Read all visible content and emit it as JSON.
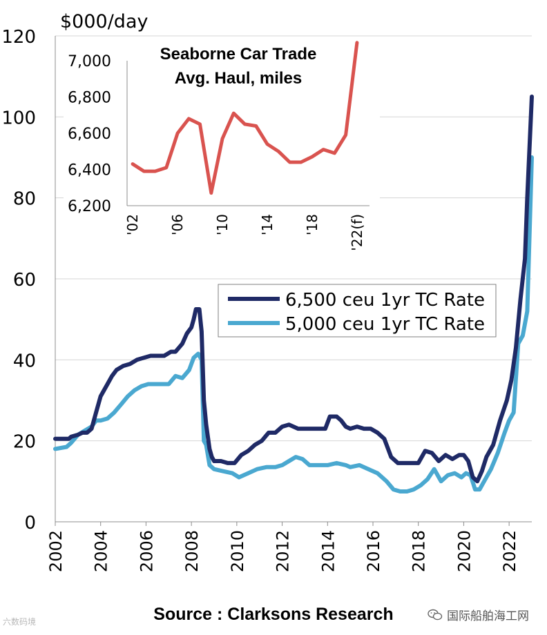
{
  "chart_data": [
    {
      "type": "line",
      "title": "",
      "unit_label": "$000/day",
      "xlabel": "",
      "ylabel": "$000/day",
      "xlim": [
        2002,
        2023.0
      ],
      "ylim": [
        0,
        120
      ],
      "y_ticks": [
        0,
        20,
        40,
        60,
        80,
        100,
        120
      ],
      "y_tick_labels": [
        "0",
        "20",
        "40",
        "60",
        "80",
        "100",
        "120"
      ],
      "x_ticks": [
        2002,
        2004,
        2006,
        2008,
        2010,
        2012,
        2014,
        2016,
        2018,
        2020,
        2022
      ],
      "x_tick_labels": [
        "2002",
        "2004",
        "2006",
        "2008",
        "2010",
        "2012",
        "2014",
        "2016",
        "2018",
        "2020",
        "2022"
      ],
      "grid": true,
      "legend": "center-right",
      "series": [
        {
          "name": "6,500 ceu 1yr TC Rate",
          "color": "#1f2a66",
          "x": [
            2002.0,
            2002.6,
            2002.7,
            2003.0,
            2003.2,
            2003.4,
            2003.6,
            2003.8,
            2004.0,
            2004.3,
            2004.5,
            2004.7,
            2005.0,
            2005.3,
            2005.6,
            2005.9,
            2006.2,
            2006.5,
            2006.8,
            2007.1,
            2007.3,
            2007.6,
            2007.8,
            2008.0,
            2008.1,
            2008.2,
            2008.35,
            2008.45,
            2008.55,
            2008.65,
            2008.8,
            2008.9,
            2009.0,
            2009.3,
            2009.6,
            2009.9,
            2010.2,
            2010.5,
            2010.8,
            2011.1,
            2011.4,
            2011.7,
            2012.0,
            2012.3,
            2012.7,
            2013.0,
            2013.3,
            2013.6,
            2013.9,
            2014.1,
            2014.4,
            2014.6,
            2014.8,
            2015.0,
            2015.3,
            2015.6,
            2015.9,
            2016.2,
            2016.5,
            2016.8,
            2017.1,
            2017.4,
            2017.7,
            2018.0,
            2018.3,
            2018.6,
            2018.9,
            2019.2,
            2019.5,
            2019.8,
            2020.0,
            2020.2,
            2020.4,
            2020.6,
            2020.8,
            2021.0,
            2021.3,
            2021.6,
            2021.9,
            2022.1,
            2022.3,
            2022.5,
            2022.7,
            2022.8,
            2023.0
          ],
          "values": [
            20.5,
            20.5,
            21.0,
            21.5,
            22.0,
            22.0,
            23.0,
            27.0,
            31.0,
            34.0,
            36.0,
            37.5,
            38.5,
            39.0,
            40.0,
            40.5,
            41.0,
            41.0,
            41.0,
            42.0,
            42.0,
            44.0,
            46.5,
            48.0,
            50.0,
            52.5,
            52.5,
            47.0,
            30.0,
            24.0,
            18.0,
            16.0,
            15.0,
            15.0,
            14.5,
            14.5,
            16.5,
            17.5,
            19.0,
            20.0,
            22.0,
            22.0,
            23.5,
            24.0,
            23.0,
            23.0,
            23.0,
            23.0,
            23.0,
            26.0,
            26.0,
            25.0,
            23.5,
            23.0,
            23.5,
            23.0,
            23.0,
            22.0,
            20.5,
            16.0,
            14.5,
            14.5,
            14.5,
            14.5,
            17.5,
            17.0,
            15.0,
            16.5,
            15.5,
            16.5,
            16.5,
            15.0,
            11.0,
            10.0,
            12.5,
            16.0,
            19.0,
            25.0,
            30.0,
            35.0,
            43.0,
            55.0,
            65.0,
            80.0,
            105.0
          ]
        },
        {
          "name": "5,000 ceu 1yr TC Rate",
          "color": "#4aa8d0",
          "x": [
            2002.0,
            2002.5,
            2002.7,
            2003.0,
            2003.3,
            2003.6,
            2003.8,
            2004.0,
            2004.3,
            2004.6,
            2004.9,
            2005.2,
            2005.5,
            2005.8,
            2006.1,
            2006.4,
            2006.7,
            2007.0,
            2007.3,
            2007.6,
            2007.9,
            2008.1,
            2008.3,
            2008.45,
            2008.55,
            2008.65,
            2008.8,
            2009.0,
            2009.4,
            2009.8,
            2010.1,
            2010.5,
            2010.9,
            2011.3,
            2011.7,
            2012.0,
            2012.3,
            2012.6,
            2012.9,
            2013.2,
            2013.6,
            2014.0,
            2014.4,
            2014.8,
            2015.0,
            2015.4,
            2015.8,
            2016.2,
            2016.6,
            2016.9,
            2017.2,
            2017.5,
            2017.8,
            2018.1,
            2018.4,
            2018.7,
            2019.0,
            2019.3,
            2019.6,
            2019.9,
            2020.1,
            2020.3,
            2020.5,
            2020.7,
            2020.9,
            2021.2,
            2021.5,
            2021.8,
            2022.0,
            2022.2,
            2022.4,
            2022.6,
            2022.8,
            2023.0
          ],
          "values": [
            18.0,
            18.5,
            19.5,
            21.5,
            22.5,
            23.5,
            25.0,
            25.0,
            25.5,
            27.0,
            29.0,
            31.0,
            32.5,
            33.5,
            34.0,
            34.0,
            34.0,
            34.0,
            36.0,
            35.5,
            37.5,
            40.5,
            41.5,
            40.0,
            20.0,
            19.0,
            14.0,
            13.0,
            12.5,
            12.0,
            11.0,
            12.0,
            13.0,
            13.5,
            13.5,
            14.0,
            15.0,
            16.0,
            15.5,
            14.0,
            14.0,
            14.0,
            14.5,
            14.0,
            13.5,
            14.0,
            13.0,
            12.0,
            10.0,
            8.0,
            7.5,
            7.5,
            8.0,
            9.0,
            10.5,
            13.0,
            10.0,
            11.5,
            12.0,
            11.0,
            12.0,
            11.5,
            8.0,
            8.0,
            10.0,
            13.0,
            17.0,
            22.0,
            25.0,
            27.0,
            44.0,
            46.0,
            52.0,
            90.0
          ]
        }
      ]
    },
    {
      "type": "line",
      "title": "Seaborne Car Trade Avg. Haul, miles",
      "title_lines": [
        "Seaborne Car Trade",
        "Avg. Haul, miles"
      ],
      "xlabel": "",
      "ylabel": "",
      "xlim": [
        2001.5,
        2022.5
      ],
      "ylim": [
        6200,
        7000
      ],
      "y_ticks": [
        6200,
        6400,
        6600,
        6800,
        7000
      ],
      "y_tick_labels": [
        "6,200",
        "6,400",
        "6,600",
        "6,800",
        "7,000"
      ],
      "x_ticks": [
        2002,
        2006,
        2010,
        2014,
        2018,
        2022
      ],
      "x_tick_labels": [
        "'02",
        "'06",
        "'10",
        "'14",
        "'18",
        "'22(f)"
      ],
      "grid": false,
      "legend": "none",
      "series": [
        {
          "name": "Avg. Haul",
          "color": "#d9534f",
          "x": [
            2002,
            2003,
            2004,
            2005,
            2006,
            2007,
            2008,
            2009,
            2010,
            2011,
            2012,
            2013,
            2014,
            2015,
            2016,
            2017,
            2018,
            2019,
            2020,
            2021,
            2022
          ],
          "values": [
            6430,
            6390,
            6390,
            6410,
            6600,
            6680,
            6650,
            6270,
            6570,
            6710,
            6650,
            6640,
            6540,
            6500,
            6440,
            6440,
            6470,
            6510,
            6490,
            6590,
            7100
          ]
        }
      ]
    }
  ],
  "footer": {
    "source": "Source : Clarksons Research",
    "watermark_left": "六数码境",
    "watermark_right": "国际船舶海工网"
  }
}
